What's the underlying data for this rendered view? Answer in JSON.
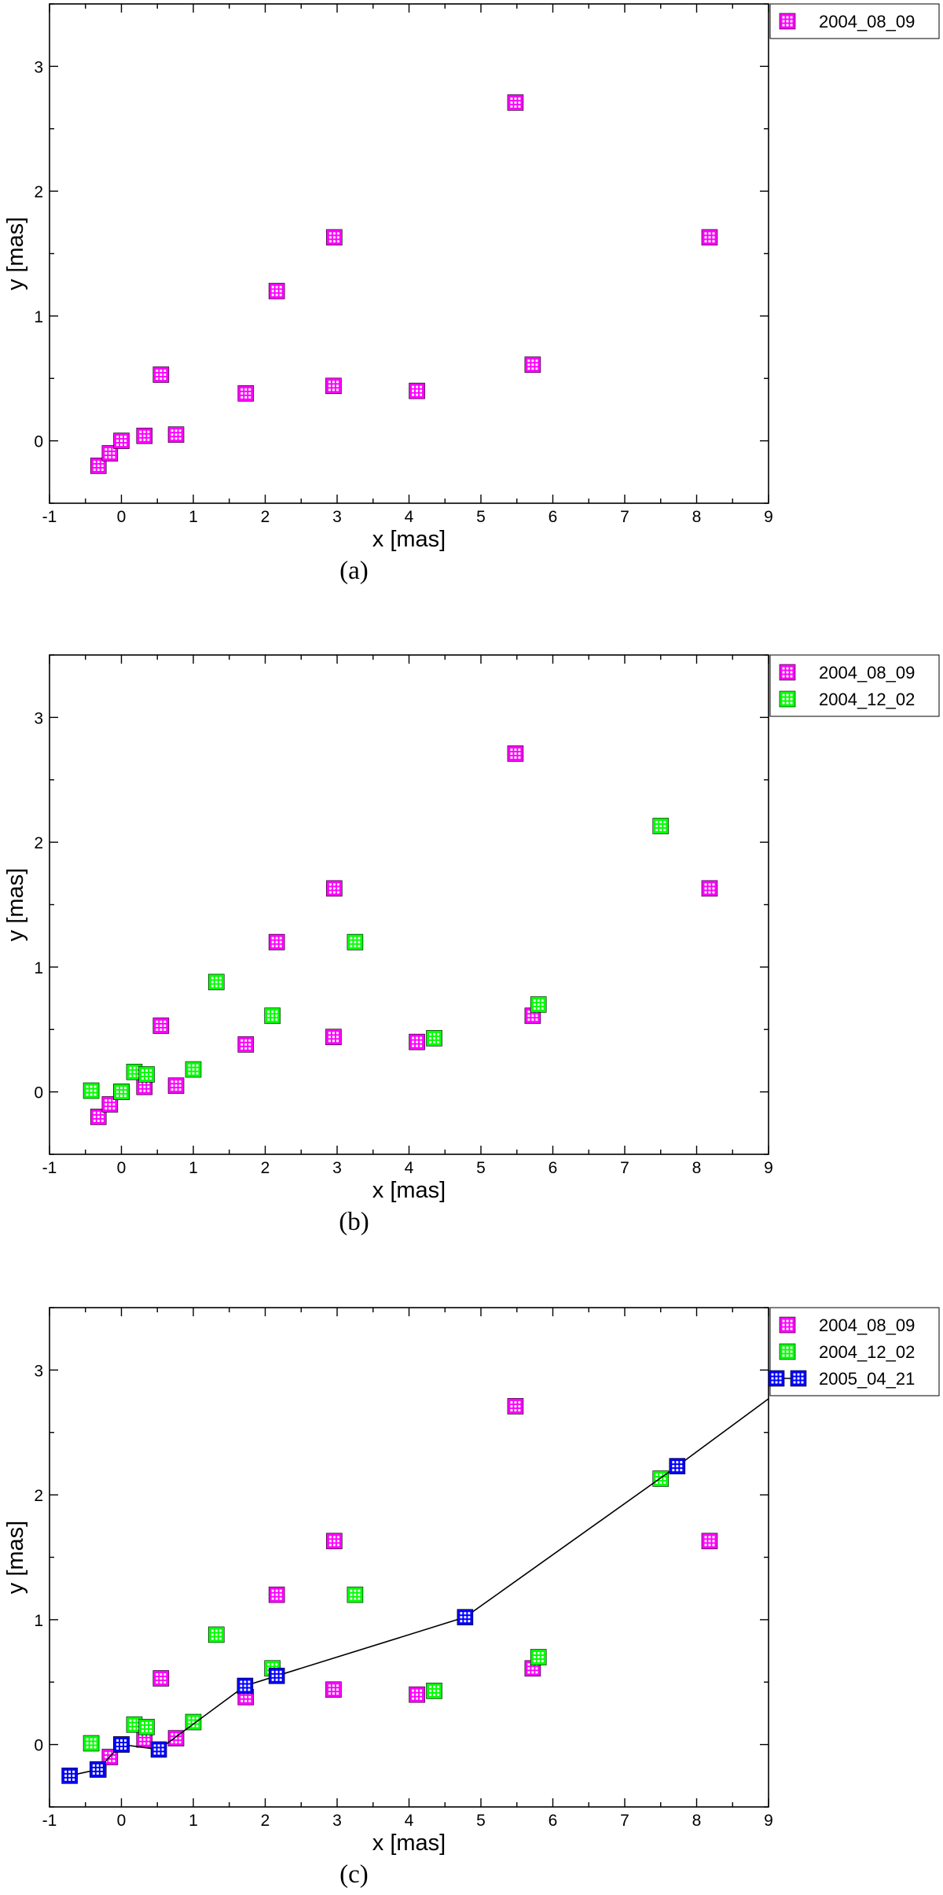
{
  "chart_data": [
    {
      "type": "scatter",
      "caption": "(a)",
      "xlabel": "x [mas]",
      "ylabel": "y [mas]",
      "xlim": [
        -1,
        9
      ],
      "ylim": [
        -0.5,
        3.5
      ],
      "xticks": [
        "-1",
        "0",
        "1",
        "2",
        "3",
        "4",
        "5",
        "6",
        "7",
        "8",
        "9"
      ],
      "yticks": [
        "0",
        "1",
        "2",
        "3"
      ],
      "legend_position": "outside-top-right",
      "series": [
        {
          "name": "2004_08_09",
          "color": "#ff00ff",
          "line": false,
          "x": [
            -0.32,
            -0.16,
            0.0,
            0.32,
            0.55,
            0.76,
            1.73,
            2.16,
            2.95,
            2.96,
            4.11,
            5.48,
            5.72,
            8.18
          ],
          "y": [
            -0.2,
            -0.1,
            0.0,
            0.04,
            0.53,
            0.05,
            0.38,
            1.2,
            0.44,
            1.63,
            0.4,
            2.71,
            0.61,
            1.63
          ]
        }
      ]
    },
    {
      "type": "scatter",
      "caption": "(b)",
      "xlabel": "x [mas]",
      "ylabel": "y [mas]",
      "xlim": [
        -1,
        9
      ],
      "ylim": [
        -0.5,
        3.5
      ],
      "xticks": [
        "-1",
        "0",
        "1",
        "2",
        "3",
        "4",
        "5",
        "6",
        "7",
        "8",
        "9"
      ],
      "yticks": [
        "0",
        "1",
        "2",
        "3"
      ],
      "legend_position": "outside-top-right",
      "series": [
        {
          "name": "2004_08_09",
          "color": "#ff00ff",
          "line": false,
          "x": [
            -0.32,
            -0.16,
            0.0,
            0.32,
            0.55,
            0.76,
            1.73,
            2.16,
            2.95,
            2.96,
            4.11,
            5.48,
            5.72,
            8.18
          ],
          "y": [
            -0.2,
            -0.1,
            0.0,
            0.04,
            0.53,
            0.05,
            0.38,
            1.2,
            0.44,
            1.63,
            0.4,
            2.71,
            0.61,
            1.63
          ]
        },
        {
          "name": "2004_12_02",
          "color": "#00ff00",
          "line": false,
          "x": [
            -0.42,
            0.0,
            0.18,
            0.35,
            1.0,
            1.32,
            2.1,
            3.25,
            4.35,
            5.8,
            7.5
          ],
          "y": [
            0.01,
            0.0,
            0.16,
            0.14,
            0.18,
            0.88,
            0.61,
            1.2,
            0.43,
            0.7,
            2.13
          ]
        }
      ]
    },
    {
      "type": "scatter",
      "caption": "(c)",
      "xlabel": "x [mas]",
      "ylabel": "y [mas]",
      "xlim": [
        -1,
        9
      ],
      "ylim": [
        -0.5,
        3.5
      ],
      "xticks": [
        "-1",
        "0",
        "1",
        "2",
        "3",
        "4",
        "5",
        "6",
        "7",
        "8",
        "9"
      ],
      "yticks": [
        "0",
        "1",
        "2",
        "3"
      ],
      "legend_position": "outside-top-right",
      "series": [
        {
          "name": "2004_08_09",
          "color": "#ff00ff",
          "line": false,
          "x": [
            -0.32,
            -0.16,
            0.0,
            0.32,
            0.55,
            0.76,
            1.73,
            2.16,
            2.95,
            2.96,
            4.11,
            5.48,
            5.72,
            8.18
          ],
          "y": [
            -0.2,
            -0.1,
            0.0,
            0.04,
            0.53,
            0.05,
            0.38,
            1.2,
            0.44,
            1.63,
            0.4,
            2.71,
            0.61,
            1.63
          ]
        },
        {
          "name": "2004_12_02",
          "color": "#00ff00",
          "line": false,
          "x": [
            -0.42,
            0.0,
            0.18,
            0.35,
            1.0,
            1.32,
            2.1,
            3.25,
            4.35,
            5.8,
            7.5
          ],
          "y": [
            0.01,
            0.0,
            0.16,
            0.14,
            0.18,
            0.88,
            0.61,
            1.2,
            0.43,
            0.7,
            2.13
          ]
        },
        {
          "name": "2005_04_21",
          "color": "#0000ff",
          "line": true,
          "line_extends_to": {
            "x": 9.0,
            "y": 2.77
          },
          "x": [
            -0.72,
            -0.33,
            0.0,
            0.52,
            1.72,
            2.16,
            4.78,
            7.73
          ],
          "y": [
            -0.25,
            -0.2,
            0.0,
            -0.04,
            0.47,
            0.55,
            1.02,
            2.23
          ]
        }
      ]
    }
  ]
}
